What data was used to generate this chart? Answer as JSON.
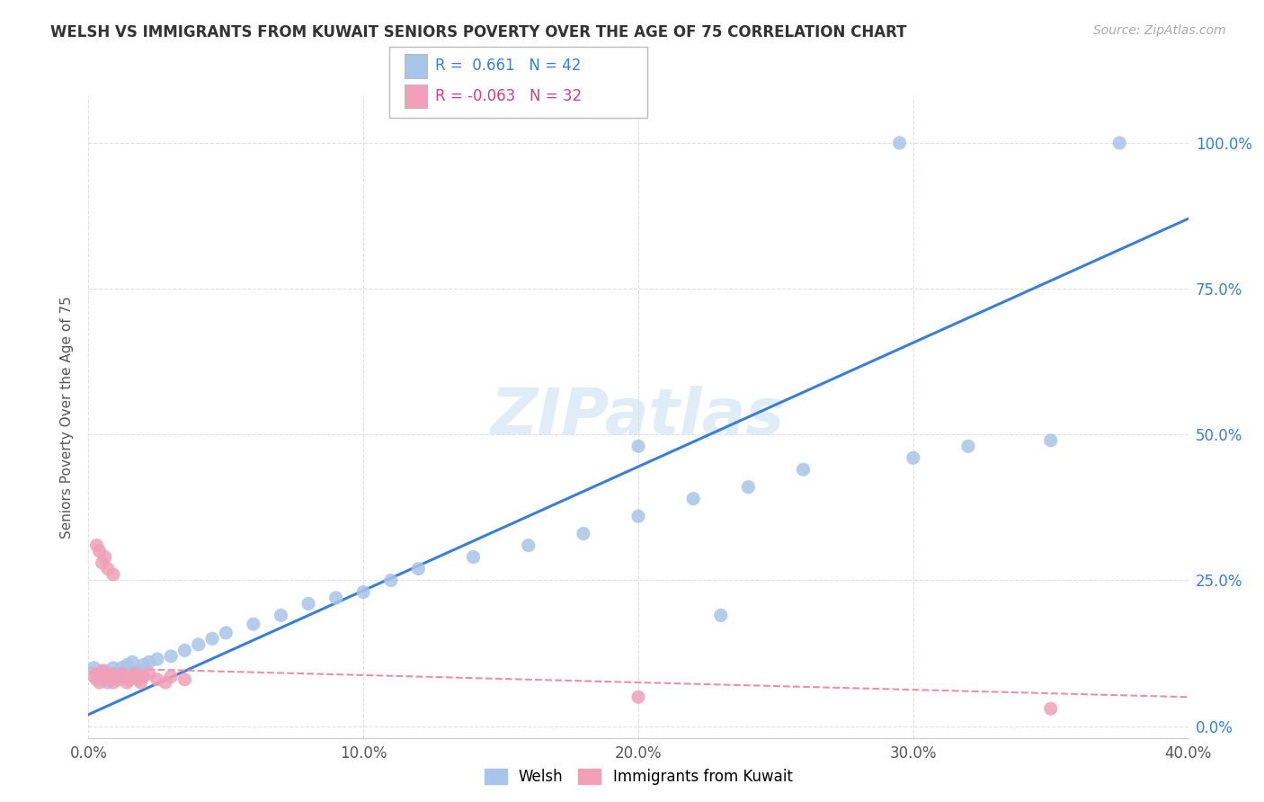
{
  "title": "WELSH VS IMMIGRANTS FROM KUWAIT SENIORS POVERTY OVER THE AGE OF 75 CORRELATION CHART",
  "source": "Source: ZipAtlas.com",
  "ylabel": "Seniors Poverty Over the Age of 75",
  "xlim": [
    0.0,
    0.4
  ],
  "ylim": [
    -0.02,
    1.08
  ],
  "yticks": [
    0.0,
    0.25,
    0.5,
    0.75,
    1.0
  ],
  "ytick_labels": [
    "0.0%",
    "25.0%",
    "50.0%",
    "75.0%",
    "100.0%"
  ],
  "xticks": [
    0.0,
    0.1,
    0.2,
    0.3,
    0.4
  ],
  "xtick_labels": [
    "0.0%",
    "10.0%",
    "20.0%",
    "30.0%",
    "40.0%"
  ],
  "welsh_R": 0.661,
  "welsh_N": 42,
  "kuwait_R": -0.063,
  "kuwait_N": 32,
  "welsh_color": "#a8c4e8",
  "kuwait_color": "#f0a0b8",
  "welsh_line_color": "#3a7fd4",
  "kuwait_line_color": "#e890a8",
  "background_color": "#ffffff",
  "grid_color": "#e0e0e0",
  "welsh_scatter_x": [
    0.002,
    0.003,
    0.004,
    0.005,
    0.006,
    0.007,
    0.008,
    0.009,
    0.01,
    0.012,
    0.014,
    0.016,
    0.018,
    0.02,
    0.022,
    0.025,
    0.03,
    0.035,
    0.04,
    0.045,
    0.05,
    0.06,
    0.07,
    0.08,
    0.09,
    0.1,
    0.11,
    0.12,
    0.14,
    0.16,
    0.18,
    0.2,
    0.22,
    0.24,
    0.26,
    0.3,
    0.32,
    0.35,
    0.295,
    0.375,
    0.2,
    0.23
  ],
  "welsh_scatter_y": [
    0.1,
    0.08,
    0.09,
    0.085,
    0.095,
    0.075,
    0.08,
    0.1,
    0.09,
    0.1,
    0.105,
    0.11,
    0.095,
    0.105,
    0.11,
    0.115,
    0.12,
    0.13,
    0.14,
    0.15,
    0.16,
    0.175,
    0.19,
    0.21,
    0.22,
    0.23,
    0.25,
    0.27,
    0.29,
    0.31,
    0.33,
    0.36,
    0.39,
    0.41,
    0.44,
    0.46,
    0.48,
    0.49,
    1.0,
    1.0,
    0.48,
    0.19
  ],
  "kuwait_scatter_x": [
    0.002,
    0.003,
    0.004,
    0.005,
    0.006,
    0.007,
    0.008,
    0.009,
    0.01,
    0.011,
    0.012,
    0.013,
    0.014,
    0.015,
    0.016,
    0.017,
    0.018,
    0.019,
    0.02,
    0.022,
    0.025,
    0.028,
    0.03,
    0.035,
    0.005,
    0.007,
    0.009,
    0.003,
    0.004,
    0.006,
    0.2,
    0.35
  ],
  "kuwait_scatter_y": [
    0.085,
    0.09,
    0.075,
    0.095,
    0.08,
    0.085,
    0.09,
    0.075,
    0.085,
    0.08,
    0.09,
    0.085,
    0.075,
    0.08,
    0.085,
    0.09,
    0.08,
    0.075,
    0.085,
    0.09,
    0.08,
    0.075,
    0.085,
    0.08,
    0.28,
    0.27,
    0.26,
    0.31,
    0.3,
    0.29,
    0.05,
    0.03
  ]
}
